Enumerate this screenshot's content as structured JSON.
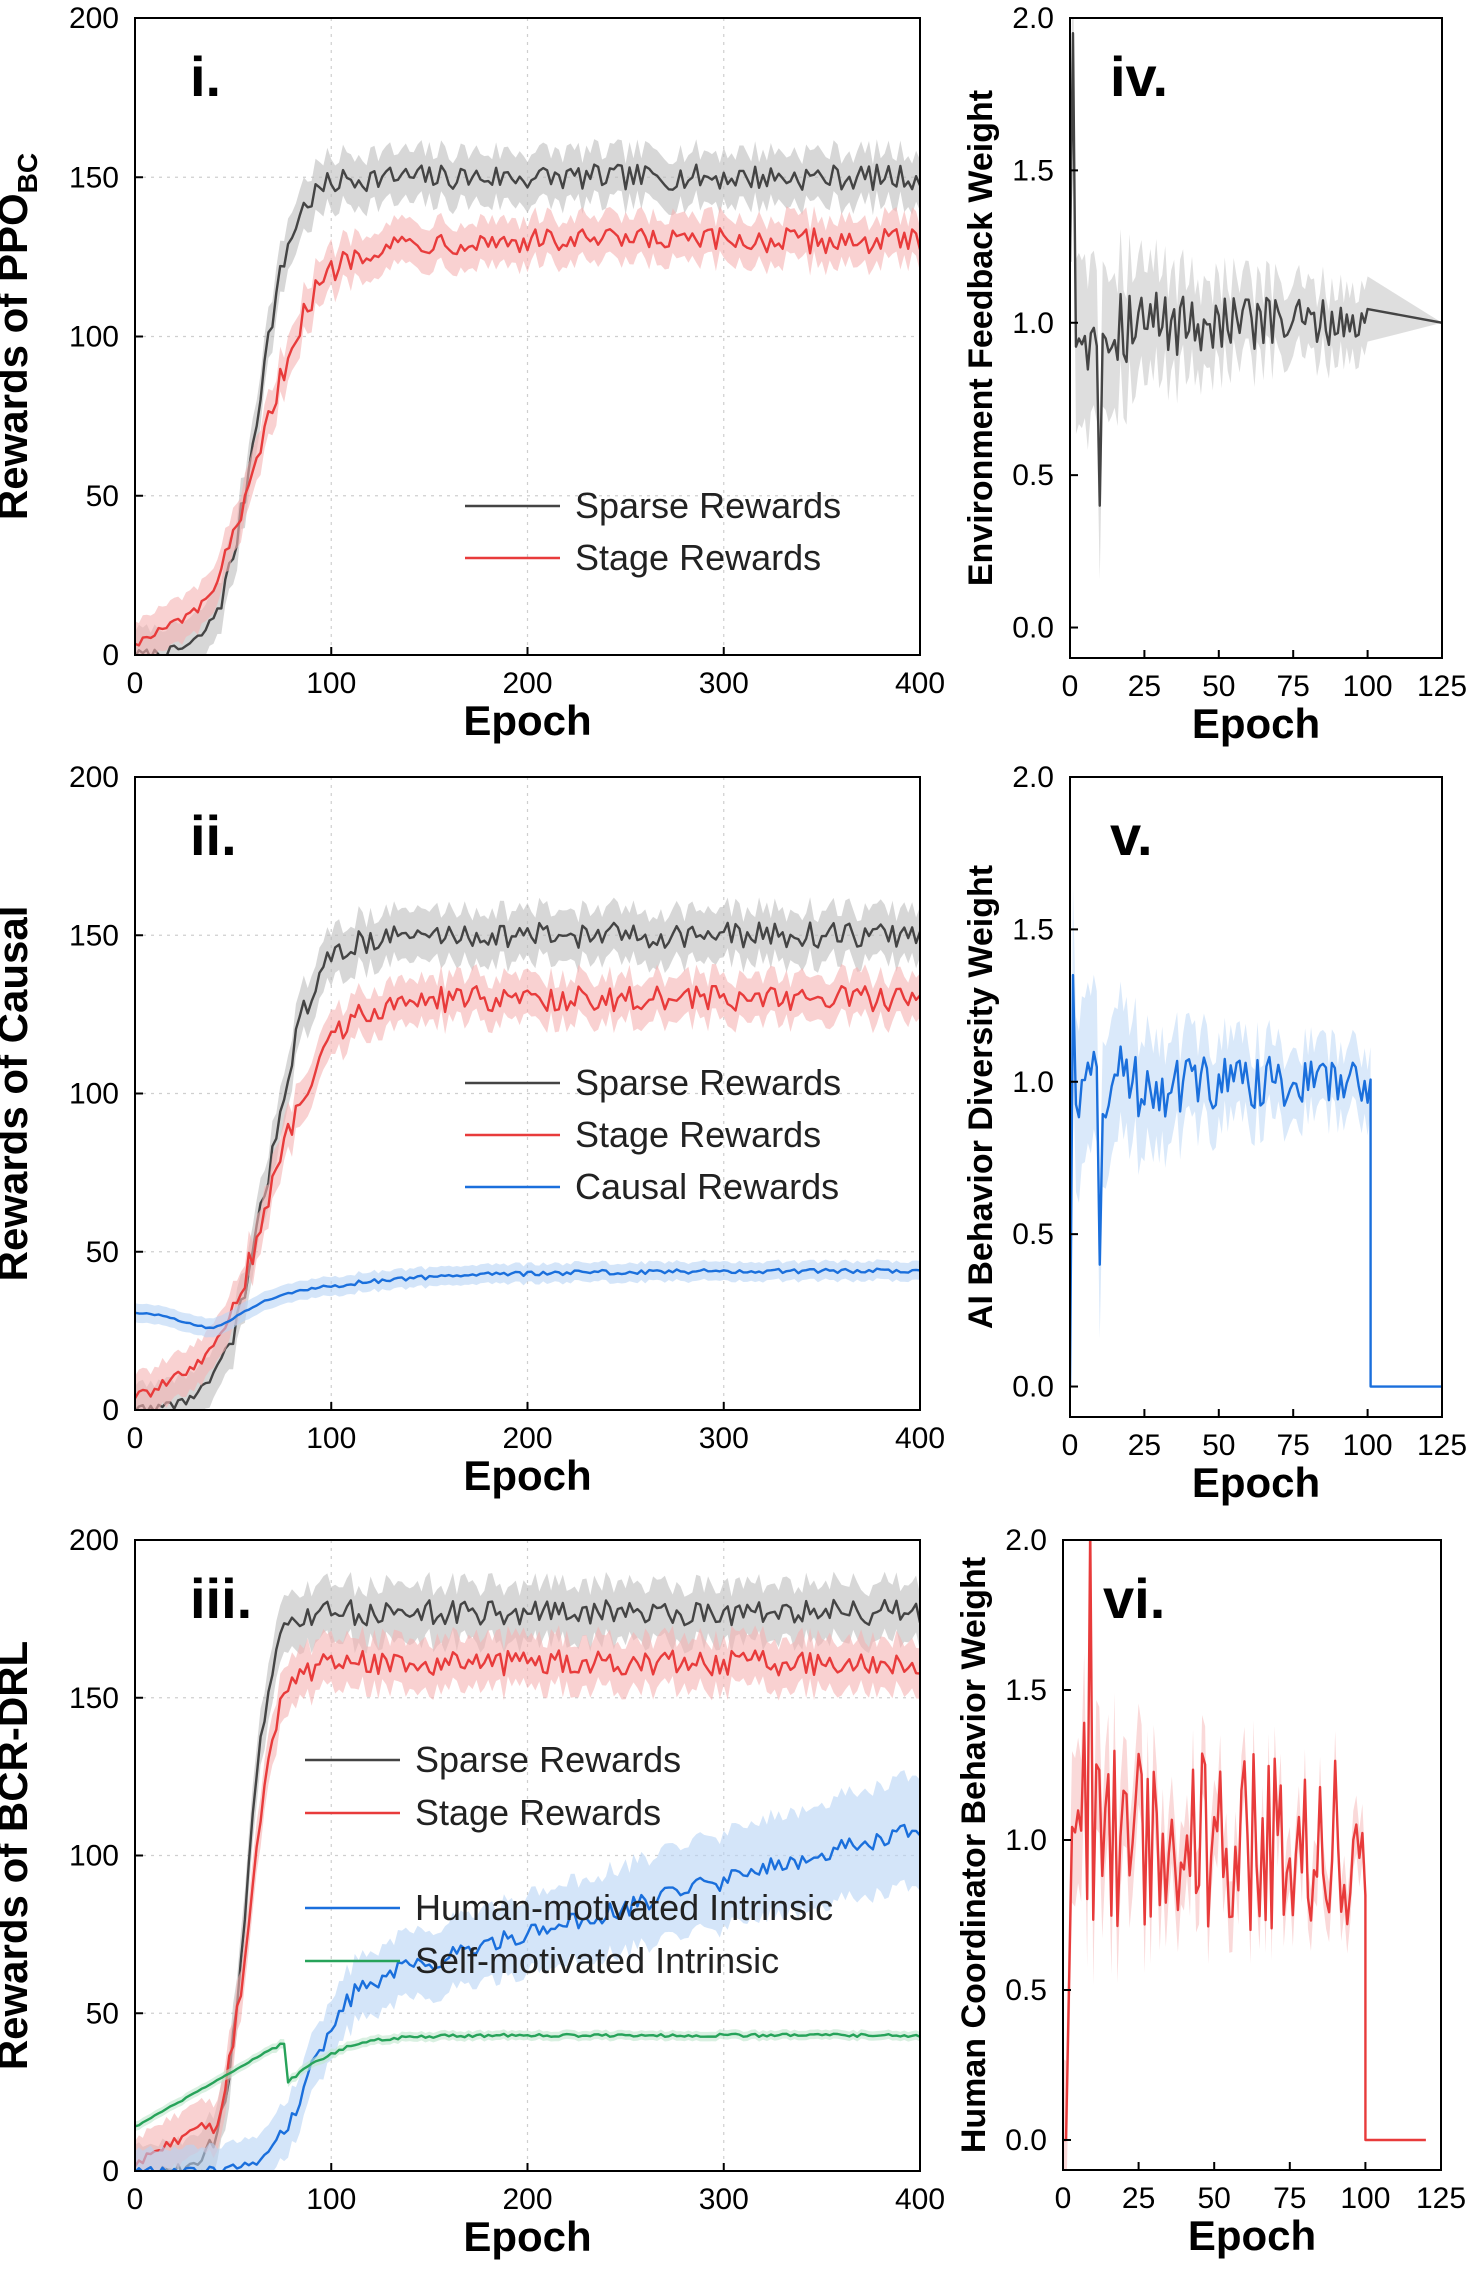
{
  "chart_data": [
    {
      "id": "i",
      "type": "line",
      "panel_label": "i.",
      "ylabel": "Rewards of PPO",
      "ylabel_sub": "BC",
      "xlabel": "Epoch",
      "xlim": [
        0,
        400
      ],
      "ylim": [
        0,
        200
      ],
      "xticks": [
        0,
        100,
        200,
        300,
        400
      ],
      "yticks": [
        0,
        50,
        100,
        150,
        200
      ],
      "grid": true,
      "legend_position": "lower-right",
      "series": [
        {
          "name": "Sparse Rewards",
          "color": "#444444",
          "band": "#bdbdbd",
          "shape": "logistic",
          "start": 0,
          "end": 150,
          "mid": 62,
          "scale": 9,
          "noise": 4,
          "band_width": 8
        },
        {
          "name": "Stage Rewards",
          "color": "#e83b3b",
          "band": "#f5b3b3",
          "shape": "logistic",
          "start": 3,
          "end": 130,
          "mid": 65,
          "scale": 14,
          "noise": 4,
          "band_width": 7
        }
      ]
    },
    {
      "id": "ii",
      "type": "line",
      "panel_label": "ii.",
      "ylabel": "Rewards of Causal",
      "xlabel": "Epoch",
      "xlim": [
        0,
        400
      ],
      "ylim": [
        0,
        200
      ],
      "xticks": [
        0,
        100,
        200,
        300,
        400
      ],
      "yticks": [
        0,
        50,
        100,
        150,
        200
      ],
      "grid": true,
      "legend_position": "center-right",
      "series": [
        {
          "name": "Sparse Rewards",
          "color": "#444444",
          "band": "#bdbdbd",
          "shape": "logistic",
          "start": 0,
          "end": 150,
          "mid": 68,
          "scale": 11,
          "noise": 4,
          "band_width": 8
        },
        {
          "name": "Stage Rewards",
          "color": "#e83b3b",
          "band": "#f5b3b3",
          "shape": "logistic",
          "start": 3,
          "end": 130,
          "mid": 68,
          "scale": 15,
          "noise": 4,
          "band_width": 7
        },
        {
          "name": "Causal Rewards",
          "color": "#1a6fdc",
          "band": "#b8d3f5",
          "shape": "dip",
          "start": 31,
          "end": 44,
          "mid": 110,
          "scale": 25,
          "noise": 0.7,
          "band_width": 3
        }
      ]
    },
    {
      "id": "iii",
      "type": "line",
      "panel_label": "iii.",
      "ylabel": "Rewards of BCR-DRL",
      "xlabel": "Epoch",
      "xlim": [
        0,
        400
      ],
      "ylim": [
        0,
        200
      ],
      "xticks": [
        0,
        100,
        200,
        300,
        400
      ],
      "yticks": [
        0,
        50,
        100,
        150,
        200
      ],
      "grid": true,
      "legend_position": "center",
      "series": [
        {
          "name": "Sparse Rewards",
          "color": "#444444",
          "band": "#bdbdbd",
          "shape": "logistic",
          "start": 0,
          "end": 177,
          "mid": 57,
          "scale": 6,
          "noise": 4,
          "band_width": 9
        },
        {
          "name": "Stage Rewards",
          "color": "#e83b3b",
          "band": "#f5b3b3",
          "shape": "logistic",
          "start": 2,
          "end": 161,
          "mid": 58,
          "scale": 7,
          "noise": 4,
          "band_width": 8
        },
        {
          "name": "Human-motivated Intrinsic",
          "color": "#1a6fdc",
          "band": "#b8d3f5",
          "shape": "human",
          "start": 0,
          "end": 110,
          "mid": 88,
          "scale": 9,
          "noise": 3,
          "band_width": 11
        },
        {
          "name": "Self-motivated Intrinsic",
          "color": "#27a35a",
          "band": "#bfe6cd",
          "shape": "logistic",
          "start": 14,
          "end": 43,
          "mid": 78,
          "scale": 16,
          "noise": 0.5,
          "band_width": 1.5
        }
      ]
    },
    {
      "id": "iv",
      "type": "line",
      "panel_label": "iv.",
      "ylabel": "Environment Feedback Weight",
      "xlabel": "Epoch",
      "xlim": [
        0,
        125
      ],
      "ylim": [
        -0.1,
        2.0
      ],
      "xticks": [
        0,
        25,
        50,
        75,
        100,
        125
      ],
      "yticks": [
        0.0,
        0.5,
        1.0,
        1.5,
        2.0
      ],
      "grid": false,
      "series": [
        {
          "name": "Environment Feedback Weight",
          "color": "#444444",
          "band": "#c8c8c8",
          "shape": "weight-hold",
          "cutoff": 100,
          "after": 1.0,
          "spike_value": 0.4,
          "spike_epoch": 10,
          "peak_value": 1.95,
          "noise": 0.12,
          "band_width": 0.2
        }
      ]
    },
    {
      "id": "v",
      "type": "line",
      "panel_label": "v.",
      "ylabel": "AI Behavior Diversity Weight",
      "xlabel": "Epoch",
      "xlim": [
        0,
        125
      ],
      "ylim": [
        -0.1,
        2.0
      ],
      "xticks": [
        0,
        25,
        50,
        75,
        100,
        125
      ],
      "yticks": [
        0.0,
        0.5,
        1.0,
        1.5,
        2.0
      ],
      "grid": false,
      "series": [
        {
          "name": "AI Behavior Diversity Weight",
          "color": "#1a6fdc",
          "band": "#c2dbf7",
          "shape": "weight-drop",
          "cutoff": 101,
          "after": 0.0,
          "spike_value": 0.4,
          "spike_epoch": 10,
          "peak_value": 1.35,
          "noise": 0.12,
          "band_width": 0.2
        }
      ]
    },
    {
      "id": "vi",
      "type": "line",
      "panel_label": "vi.",
      "ylabel": "Human Coordinator Behavior Weight",
      "xlabel": "Epoch",
      "xlim": [
        0,
        125
      ],
      "ylim": [
        -0.1,
        2.0
      ],
      "xticks": [
        0,
        25,
        50,
        75,
        100,
        125
      ],
      "yticks": [
        0.0,
        0.5,
        1.0,
        1.5,
        2.0
      ],
      "grid": false,
      "series": [
        {
          "name": "Human Coordinator Behavior Weight",
          "color": "#e83b3b",
          "band": "#f6c0c0",
          "shape": "weight-drop",
          "cutoff": 100,
          "end_epoch": 120,
          "after": 0.0,
          "spike_value": 0.0,
          "spike_epoch": 0,
          "peak_value": 2.05,
          "noise": 0.1,
          "band_width": 0.18
        }
      ]
    }
  ]
}
